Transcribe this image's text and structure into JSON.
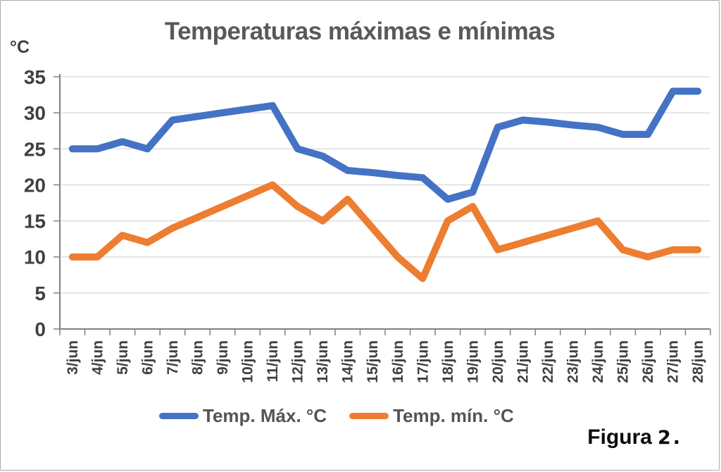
{
  "title": "Temperaturas máximas e mínimas",
  "y_axis_unit": "°C",
  "caption": {
    "main": "Figura",
    "number": "2."
  },
  "colors": {
    "temp_max": "#4472C4",
    "temp_min": "#ED7D31",
    "gridline": "#D9D9D9",
    "axis": "#808080",
    "tick_text": "#404040",
    "title_text": "#595959"
  },
  "chart_data": {
    "type": "line",
    "title": "Temperaturas máximas e mínimas",
    "xlabel": "",
    "ylabel": "°C",
    "ylim": [
      0,
      35
    ],
    "ytick_step": 5,
    "grid": true,
    "legend_position": "bottom",
    "x_label_rotation": 90,
    "categories": [
      "3/jun",
      "4/jun",
      "5/jun",
      "6/jun",
      "7/jun",
      "8/jun",
      "9/jun",
      "10/jun",
      "11/jun",
      "12/jun",
      "13/jun",
      "14/jun",
      "15/jun",
      "16/jun",
      "17/jun",
      "18/jun",
      "19/jun",
      "20/jun",
      "21/jun",
      "22/jun",
      "23/jun",
      "24/jun",
      "25/jun",
      "26/jun",
      "27/jun",
      "28/jun"
    ],
    "series": [
      {
        "name": "Temp. Máx. °C",
        "color": "#4472C4",
        "values": [
          25,
          25,
          26,
          25,
          29,
          29.5,
          30,
          30.5,
          31,
          25,
          24,
          22,
          21.7,
          21.3,
          21,
          18,
          19,
          28,
          29,
          28.7,
          28.3,
          28,
          27,
          27,
          33,
          33
        ]
      },
      {
        "name": "Temp. mín. °C",
        "color": "#ED7D31",
        "values": [
          10,
          10,
          13,
          12,
          14,
          15.5,
          17,
          18.5,
          20,
          17,
          15,
          18,
          14,
          10,
          7,
          15,
          17,
          11,
          12,
          13,
          14,
          15,
          11,
          10,
          11,
          11
        ]
      }
    ]
  }
}
